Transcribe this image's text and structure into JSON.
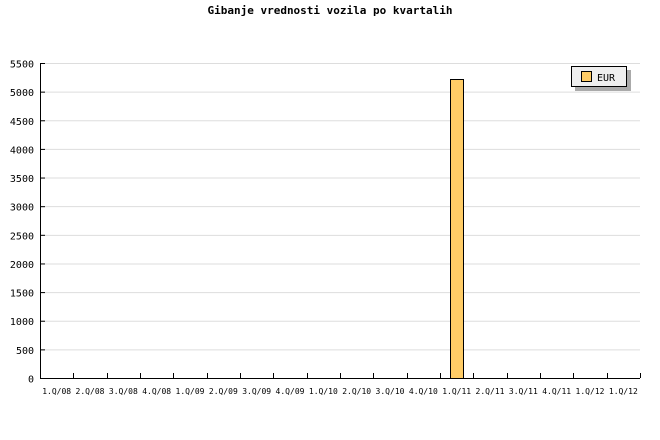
{
  "chart_data": {
    "type": "bar",
    "title": "Gibanje vrednosti vozila po kvartalih",
    "xlabel": "",
    "ylabel": "",
    "categories": [
      "1.Q/08",
      "2.Q/08",
      "3.Q/08",
      "4.Q/08",
      "1.Q/09",
      "2.Q/09",
      "3.Q/09",
      "4.Q/09",
      "1.Q/10",
      "2.Q/10",
      "3.Q/10",
      "4.Q/10",
      "1.Q/11",
      "2.Q/11",
      "3.Q/11",
      "4.Q/11",
      "1.Q/12",
      "1.Q/12"
    ],
    "series": [
      {
        "name": "EUR",
        "color": "#ffcc66",
        "values": [
          0,
          0,
          0,
          0,
          0,
          0,
          0,
          0,
          0,
          0,
          0,
          0,
          5220,
          0,
          0,
          0,
          0,
          0
        ]
      }
    ],
    "ylim": [
      0,
      5500
    ],
    "yticks": [
      0,
      500,
      1000,
      1500,
      2000,
      2500,
      3000,
      3500,
      4000,
      4500,
      5000,
      5500
    ],
    "grid": true,
    "legend": "top-right"
  }
}
